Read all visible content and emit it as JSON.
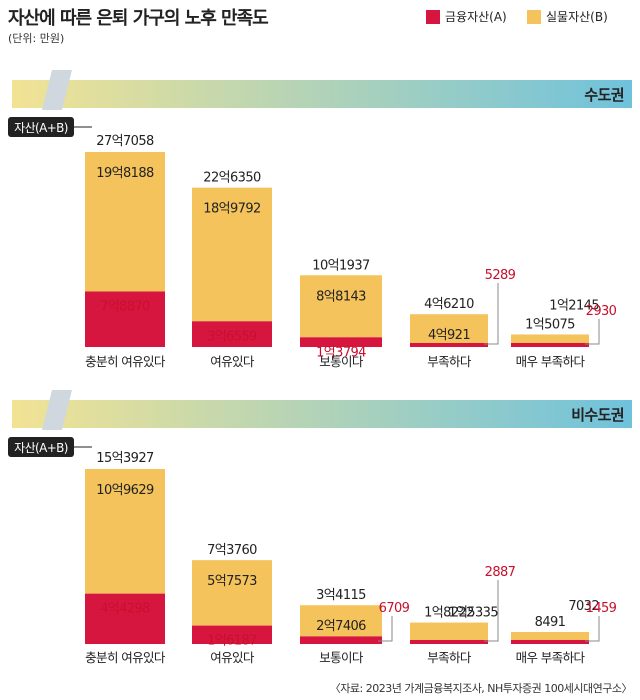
{
  "title": "자산에 따른 은퇴 가구의 노후 만족도",
  "unit": "(단위: 만원)",
  "legend": {
    "financial": "금융자산(A)",
    "real": "실물자산(B)"
  },
  "source": "〈자료: 2023년 가계금융복지조사, NH투자증권 100세시대연구소〉",
  "colors": {
    "financial": "#d7163f",
    "real": "#f5c35c",
    "banner_start": "#f2e394",
    "banner_end": "#6fc2dc",
    "red_text": "#c8102e"
  },
  "chart_data": [
    {
      "type": "bar",
      "stacked": true,
      "region": "수도권",
      "axis_tag": "자산(A+B)",
      "categories": [
        "충분히 여유있다",
        "여유있다",
        "보통이다",
        "부족하다",
        "매우 부족하다"
      ],
      "series": [
        {
          "name": "금융자산(A)",
          "values": [
            78870,
            36559,
            13794,
            5289,
            2930
          ],
          "labels": [
            "7억8870",
            "3억6559",
            "1억3794",
            "5289",
            "2930"
          ]
        },
        {
          "name": "실물자산(B)",
          "values": [
            198188,
            189792,
            88143,
            40921,
            12145
          ],
          "labels": [
            "19억8188",
            "18억9792",
            "8억8143",
            "4억921",
            "1억2145"
          ]
        }
      ],
      "totals": {
        "values": [
          277058,
          226350,
          101937,
          46210,
          15075
        ],
        "labels": [
          "27억7058",
          "22억6350",
          "10억1937",
          "4억6210",
          "1억5075"
        ]
      }
    },
    {
      "type": "bar",
      "stacked": true,
      "region": "비수도권",
      "axis_tag": "자산(A+B)",
      "categories": [
        "충분히 여유있다",
        "여유있다",
        "보통이다",
        "부족하다",
        "매우 부족하다"
      ],
      "series": [
        {
          "name": "금융자산(A)",
          "values": [
            44298,
            16187,
            6709,
            2887,
            1459
          ],
          "labels": [
            "4억4298",
            "1억6187",
            "6709",
            "2887",
            "1459"
          ]
        },
        {
          "name": "실물자산(B)",
          "values": [
            109629,
            57573,
            27406,
            15335,
            7032
          ],
          "labels": [
            "10억9629",
            "5억7573",
            "2억7406",
            "1억5335",
            "7032"
          ]
        }
      ],
      "totals": {
        "values": [
          153927,
          73760,
          34115,
          18222,
          8491
        ],
        "labels": [
          "15억3927",
          "7억3760",
          "3억4115",
          "1억8222",
          "8491"
        ]
      }
    }
  ]
}
